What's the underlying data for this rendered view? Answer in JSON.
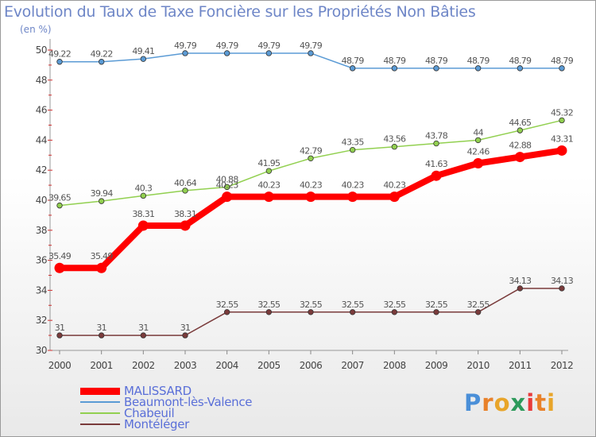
{
  "title": "Evolution du Taux de Taxe Foncière sur les Propriétés Non Bâties",
  "unit": "(en %)",
  "logo": {
    "letters": [
      "P",
      "r",
      "o",
      "x",
      "i",
      "t",
      "i"
    ],
    "colors": [
      "#4a8fd8",
      "#e8812a",
      "#e8a52a",
      "#2d9a5b",
      "#e83a3a",
      "#e8812a",
      "#e8a52a"
    ]
  },
  "chart_data": {
    "type": "line",
    "title": "Evolution du Taux de Taxe Foncière sur les Propriétés Non Bâties",
    "ylabel": "(en %)",
    "xlabel": "",
    "x": [
      "2000",
      "2001",
      "2002",
      "2003",
      "2004",
      "2005",
      "2006",
      "2007",
      "2008",
      "2009",
      "2010",
      "2011",
      "2012"
    ],
    "ylim": [
      30,
      50
    ],
    "yticks": [
      "30",
      "32",
      "34",
      "36",
      "38",
      "40",
      "42",
      "44",
      "46",
      "48",
      "50"
    ],
    "grid": false,
    "legend": "bottom-left",
    "series": [
      {
        "name": "MALISSARD",
        "color": "#ff0000",
        "labels": [
          "35.49",
          "35.49",
          "38.31",
          "38.31",
          "40.23",
          "40.23",
          "40.23",
          "40.23",
          "40.23",
          "41.63",
          "42.46",
          "42.88",
          "43.31"
        ]
      },
      {
        "name": "Beaumont-lès-Valence",
        "color": "#5b9bd5",
        "labels": [
          "49.22",
          "49.22",
          "49.41",
          "49.79",
          "49.79",
          "49.79",
          "49.79",
          "48.79",
          "48.79",
          "48.79",
          "48.79",
          "48.79",
          "48.79"
        ]
      },
      {
        "name": "Chabeuil",
        "color": "#92d050",
        "labels": [
          "39.65",
          "39.94",
          "40.3",
          "40.64",
          "40.88",
          "41.95",
          "42.79",
          "43.35",
          "43.56",
          "43.78",
          "44",
          "44.65",
          "45.32"
        ]
      },
      {
        "name": "Montéléger",
        "color": "#7a3b3b",
        "labels": [
          "31",
          "31",
          "31",
          "31",
          "32.55",
          "32.55",
          "32.55",
          "32.55",
          "32.55",
          "32.55",
          "32.55",
          "34.13",
          "34.13"
        ]
      }
    ]
  }
}
